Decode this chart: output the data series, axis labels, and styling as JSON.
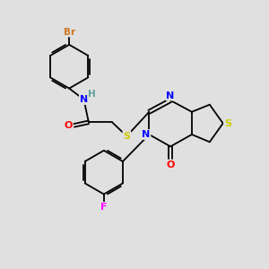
{
  "background_color": "#e0e0e0",
  "bond_color": "#000000",
  "atom_colors": {
    "Br": "#cc7722",
    "N": "#0000ff",
    "O": "#ff0000",
    "S": "#cccc00",
    "F": "#ff00ff",
    "H": "#5f9ea0",
    "C": "#000000"
  },
  "figsize": [
    3.0,
    3.0
  ],
  "dpi": 100
}
